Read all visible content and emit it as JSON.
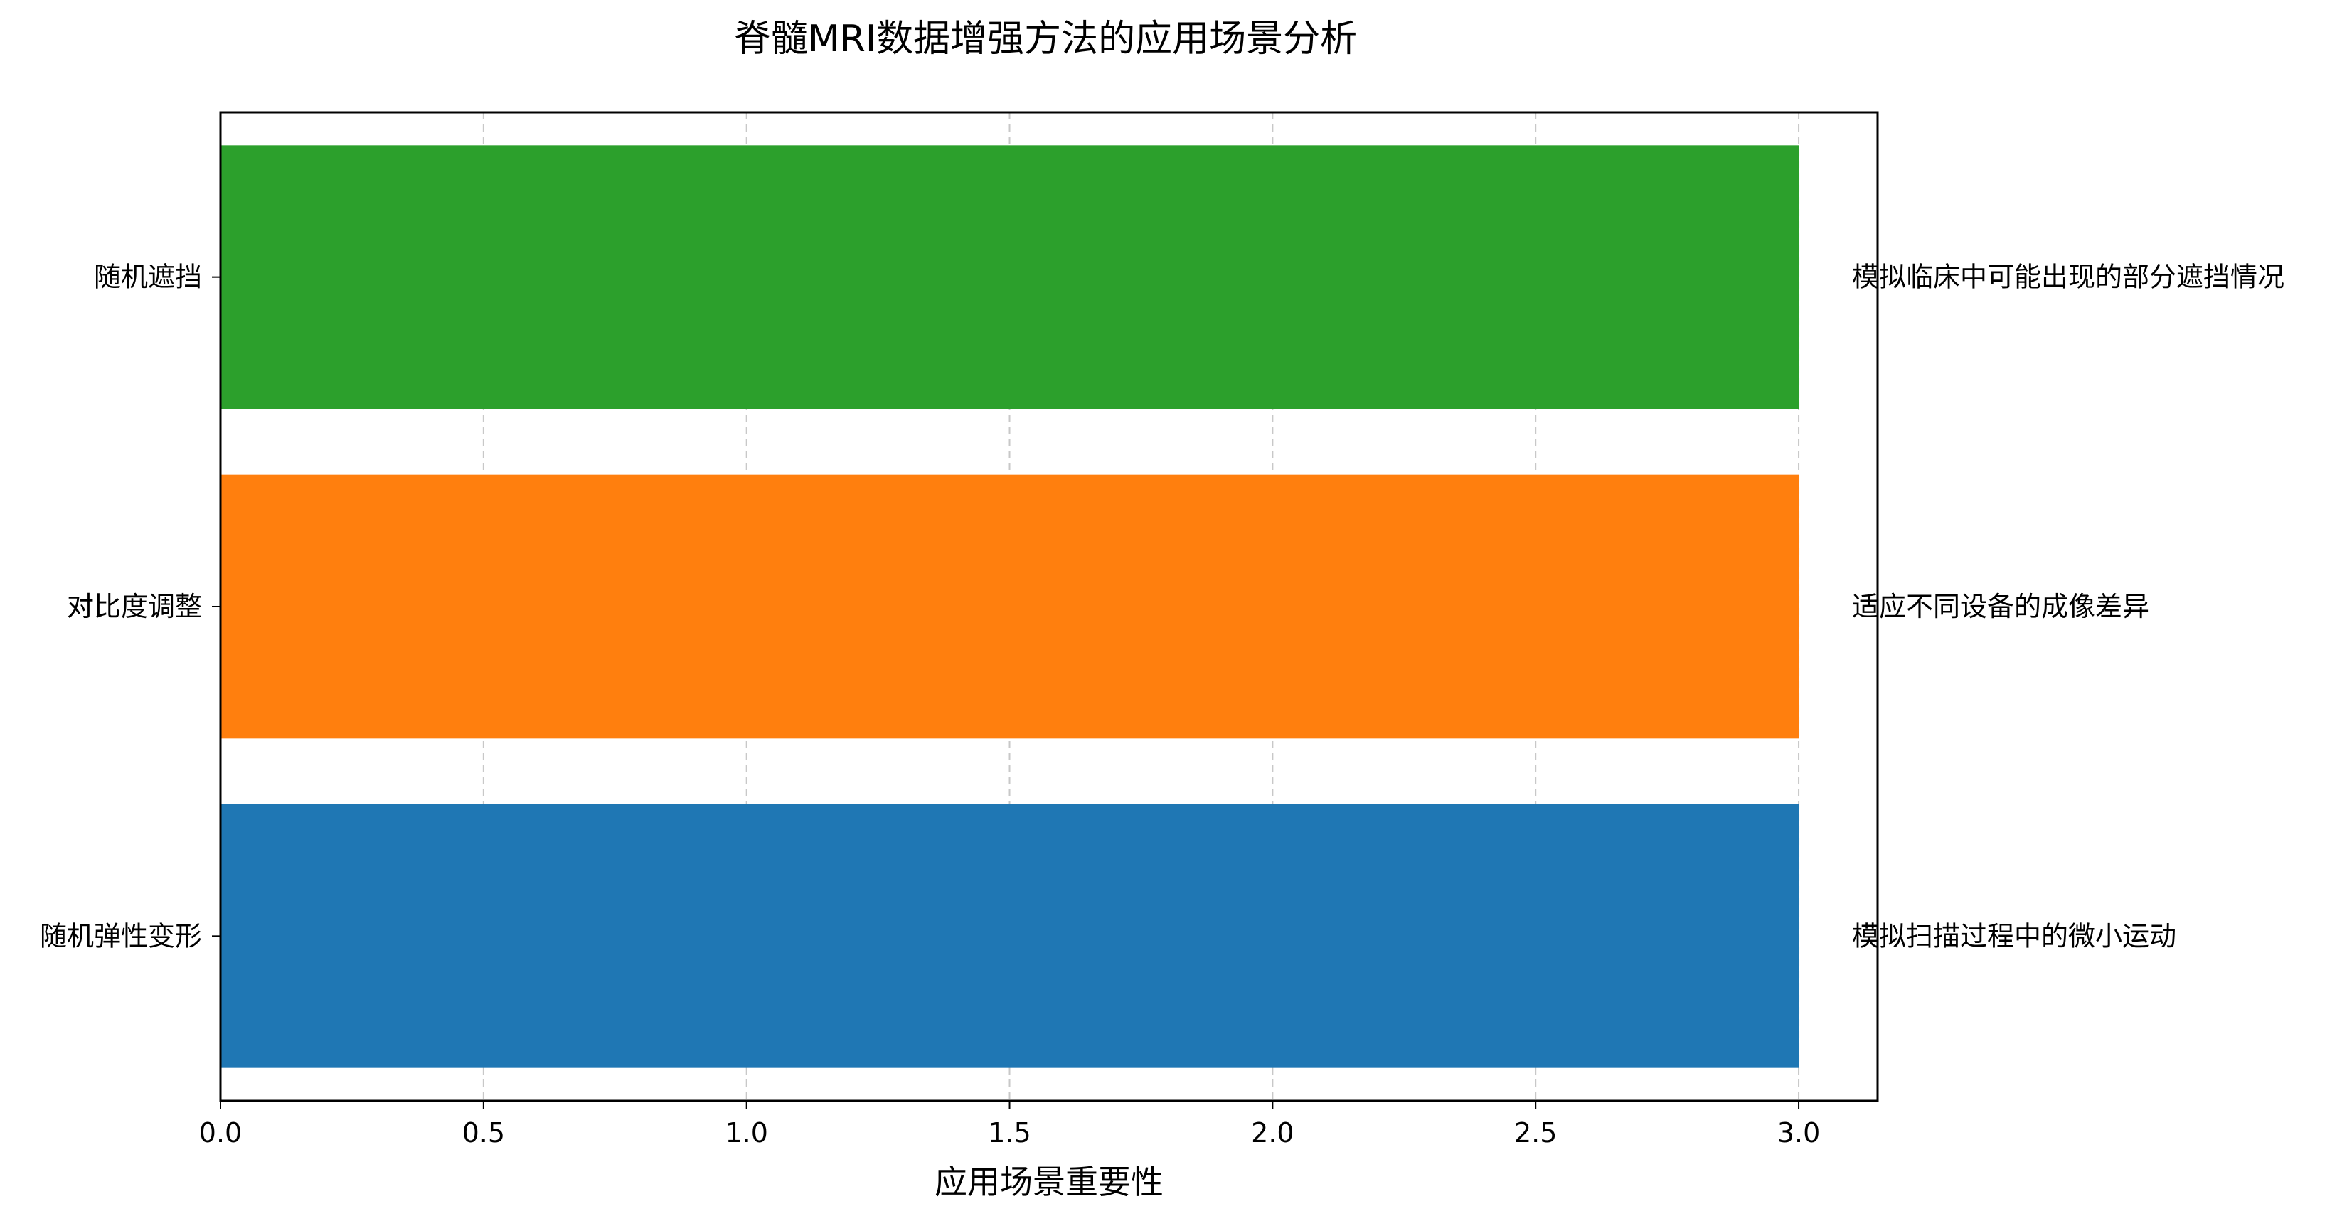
{
  "chart_data": {
    "type": "bar",
    "orientation": "horizontal",
    "title": "脊髓MRI数据增强方法的应用场景分析",
    "xlabel": "应用场景重要性",
    "ylabel": "",
    "xlim": [
      0,
      3.15
    ],
    "xticks": [
      "0.0",
      "0.5",
      "1.0",
      "1.5",
      "2.0",
      "2.5",
      "3.0"
    ],
    "grid": "x dashed",
    "categories": [
      "随机弹性变形",
      "对比度调整",
      "随机遮挡"
    ],
    "values": [
      3,
      3,
      3
    ],
    "colors": [
      "#1f77b4",
      "#ff7f0e",
      "#2ca02c"
    ],
    "annotations": [
      "模拟扫描过程中的微小运动",
      "适应不同设备的成像差异",
      "模拟临床中可能出现的部分遮挡情况"
    ]
  }
}
